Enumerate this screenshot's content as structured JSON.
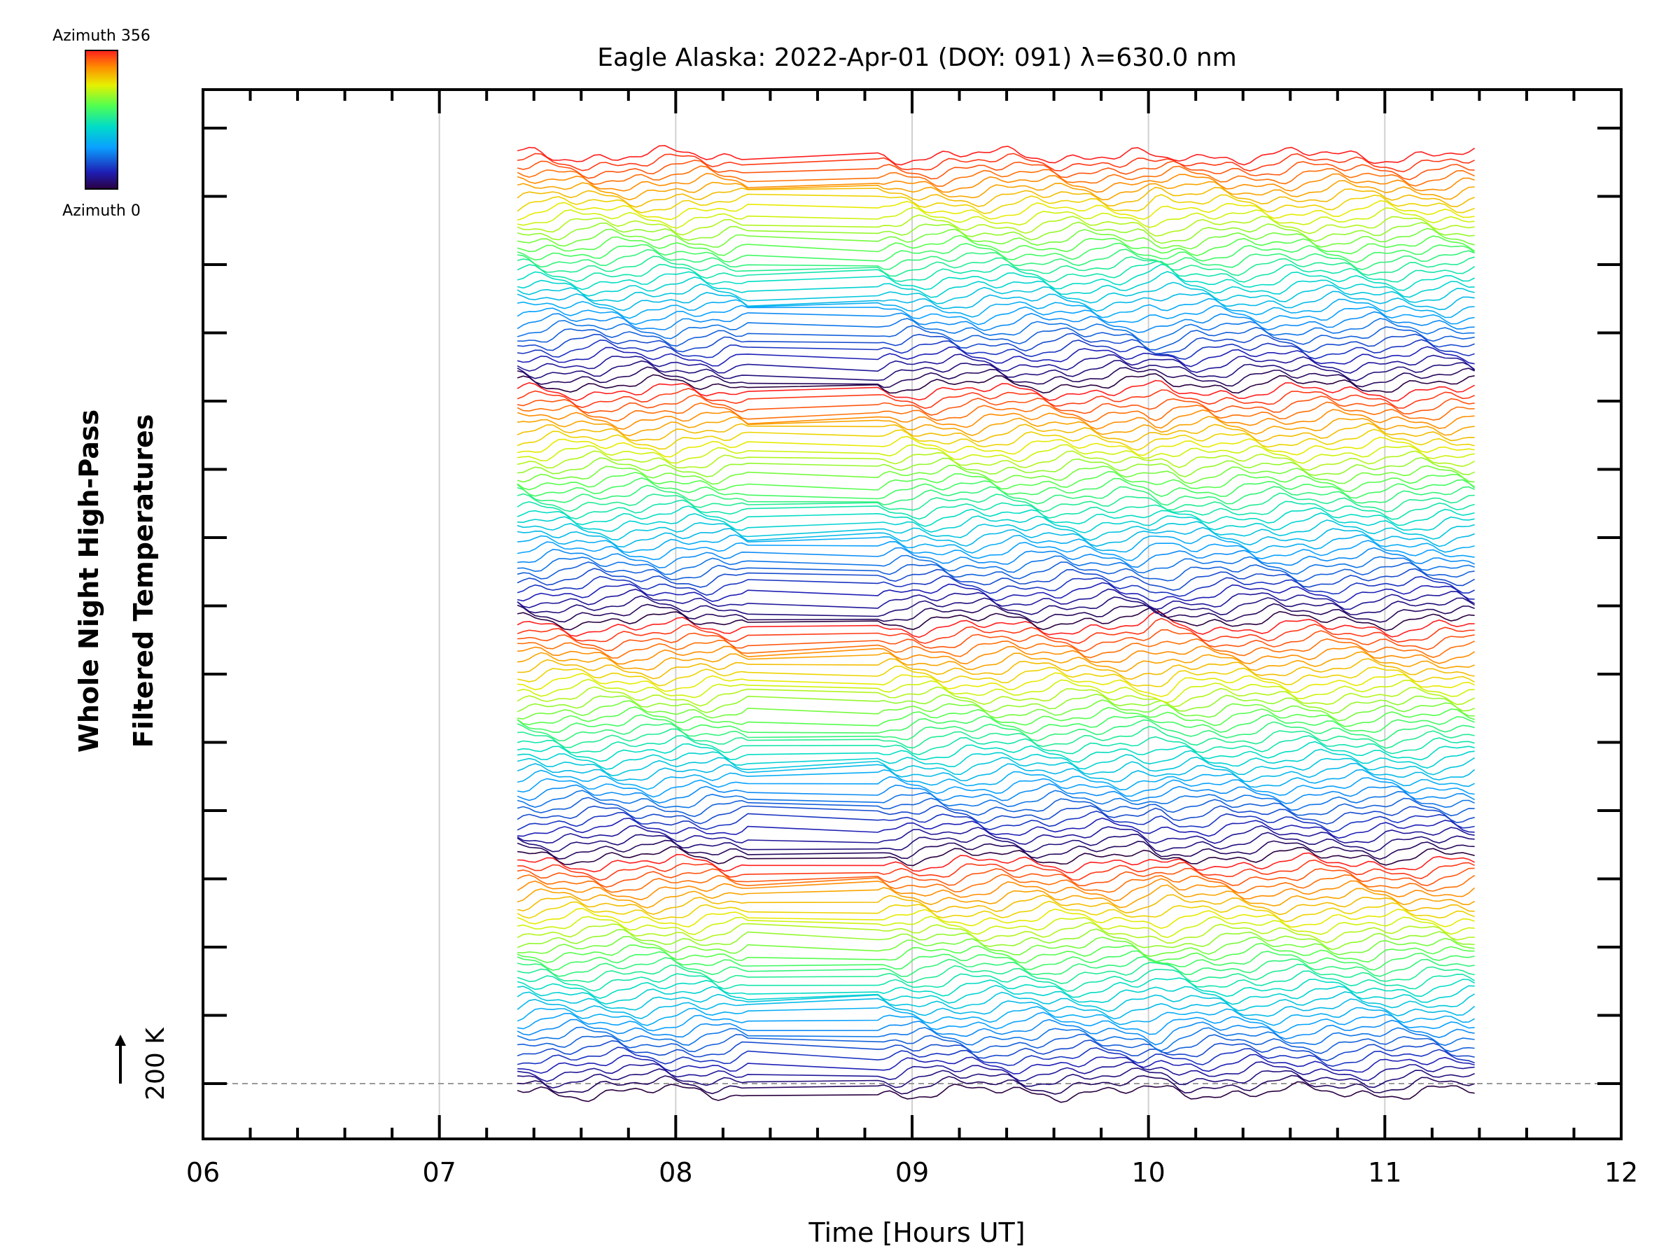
{
  "chart_data": {
    "type": "line",
    "title": "Eagle Alaska: 2022-Apr-01 (DOY: 091) λ=630.0 nm",
    "xlabel": "Time [Hours UT]",
    "ylabel_lines": [
      "Whole Night High-Pass",
      "Filtered Temperatures"
    ],
    "xlim": [
      6,
      12
    ],
    "x_ticks": [
      "06",
      "07",
      "08",
      "09",
      "10",
      "11",
      "12"
    ],
    "x_time_range": [
      7.33,
      11.38
    ],
    "x_gap": [
      8.33,
      8.85
    ],
    "grid_x": [
      7,
      8,
      9,
      10,
      11
    ],
    "n_series": 136,
    "color_encoding": "azimuth",
    "colorbar": {
      "min_label": "Azimuth  0",
      "max_label": "Azimuth  356",
      "min": 0,
      "max": 356,
      "colormap": "rainbow"
    },
    "scale_bar_label": "200 K",
    "baseline_dashed": true,
    "colors": {
      "axes": "#000000",
      "grid": "#d0d0d0",
      "baseline": "#999999"
    }
  }
}
